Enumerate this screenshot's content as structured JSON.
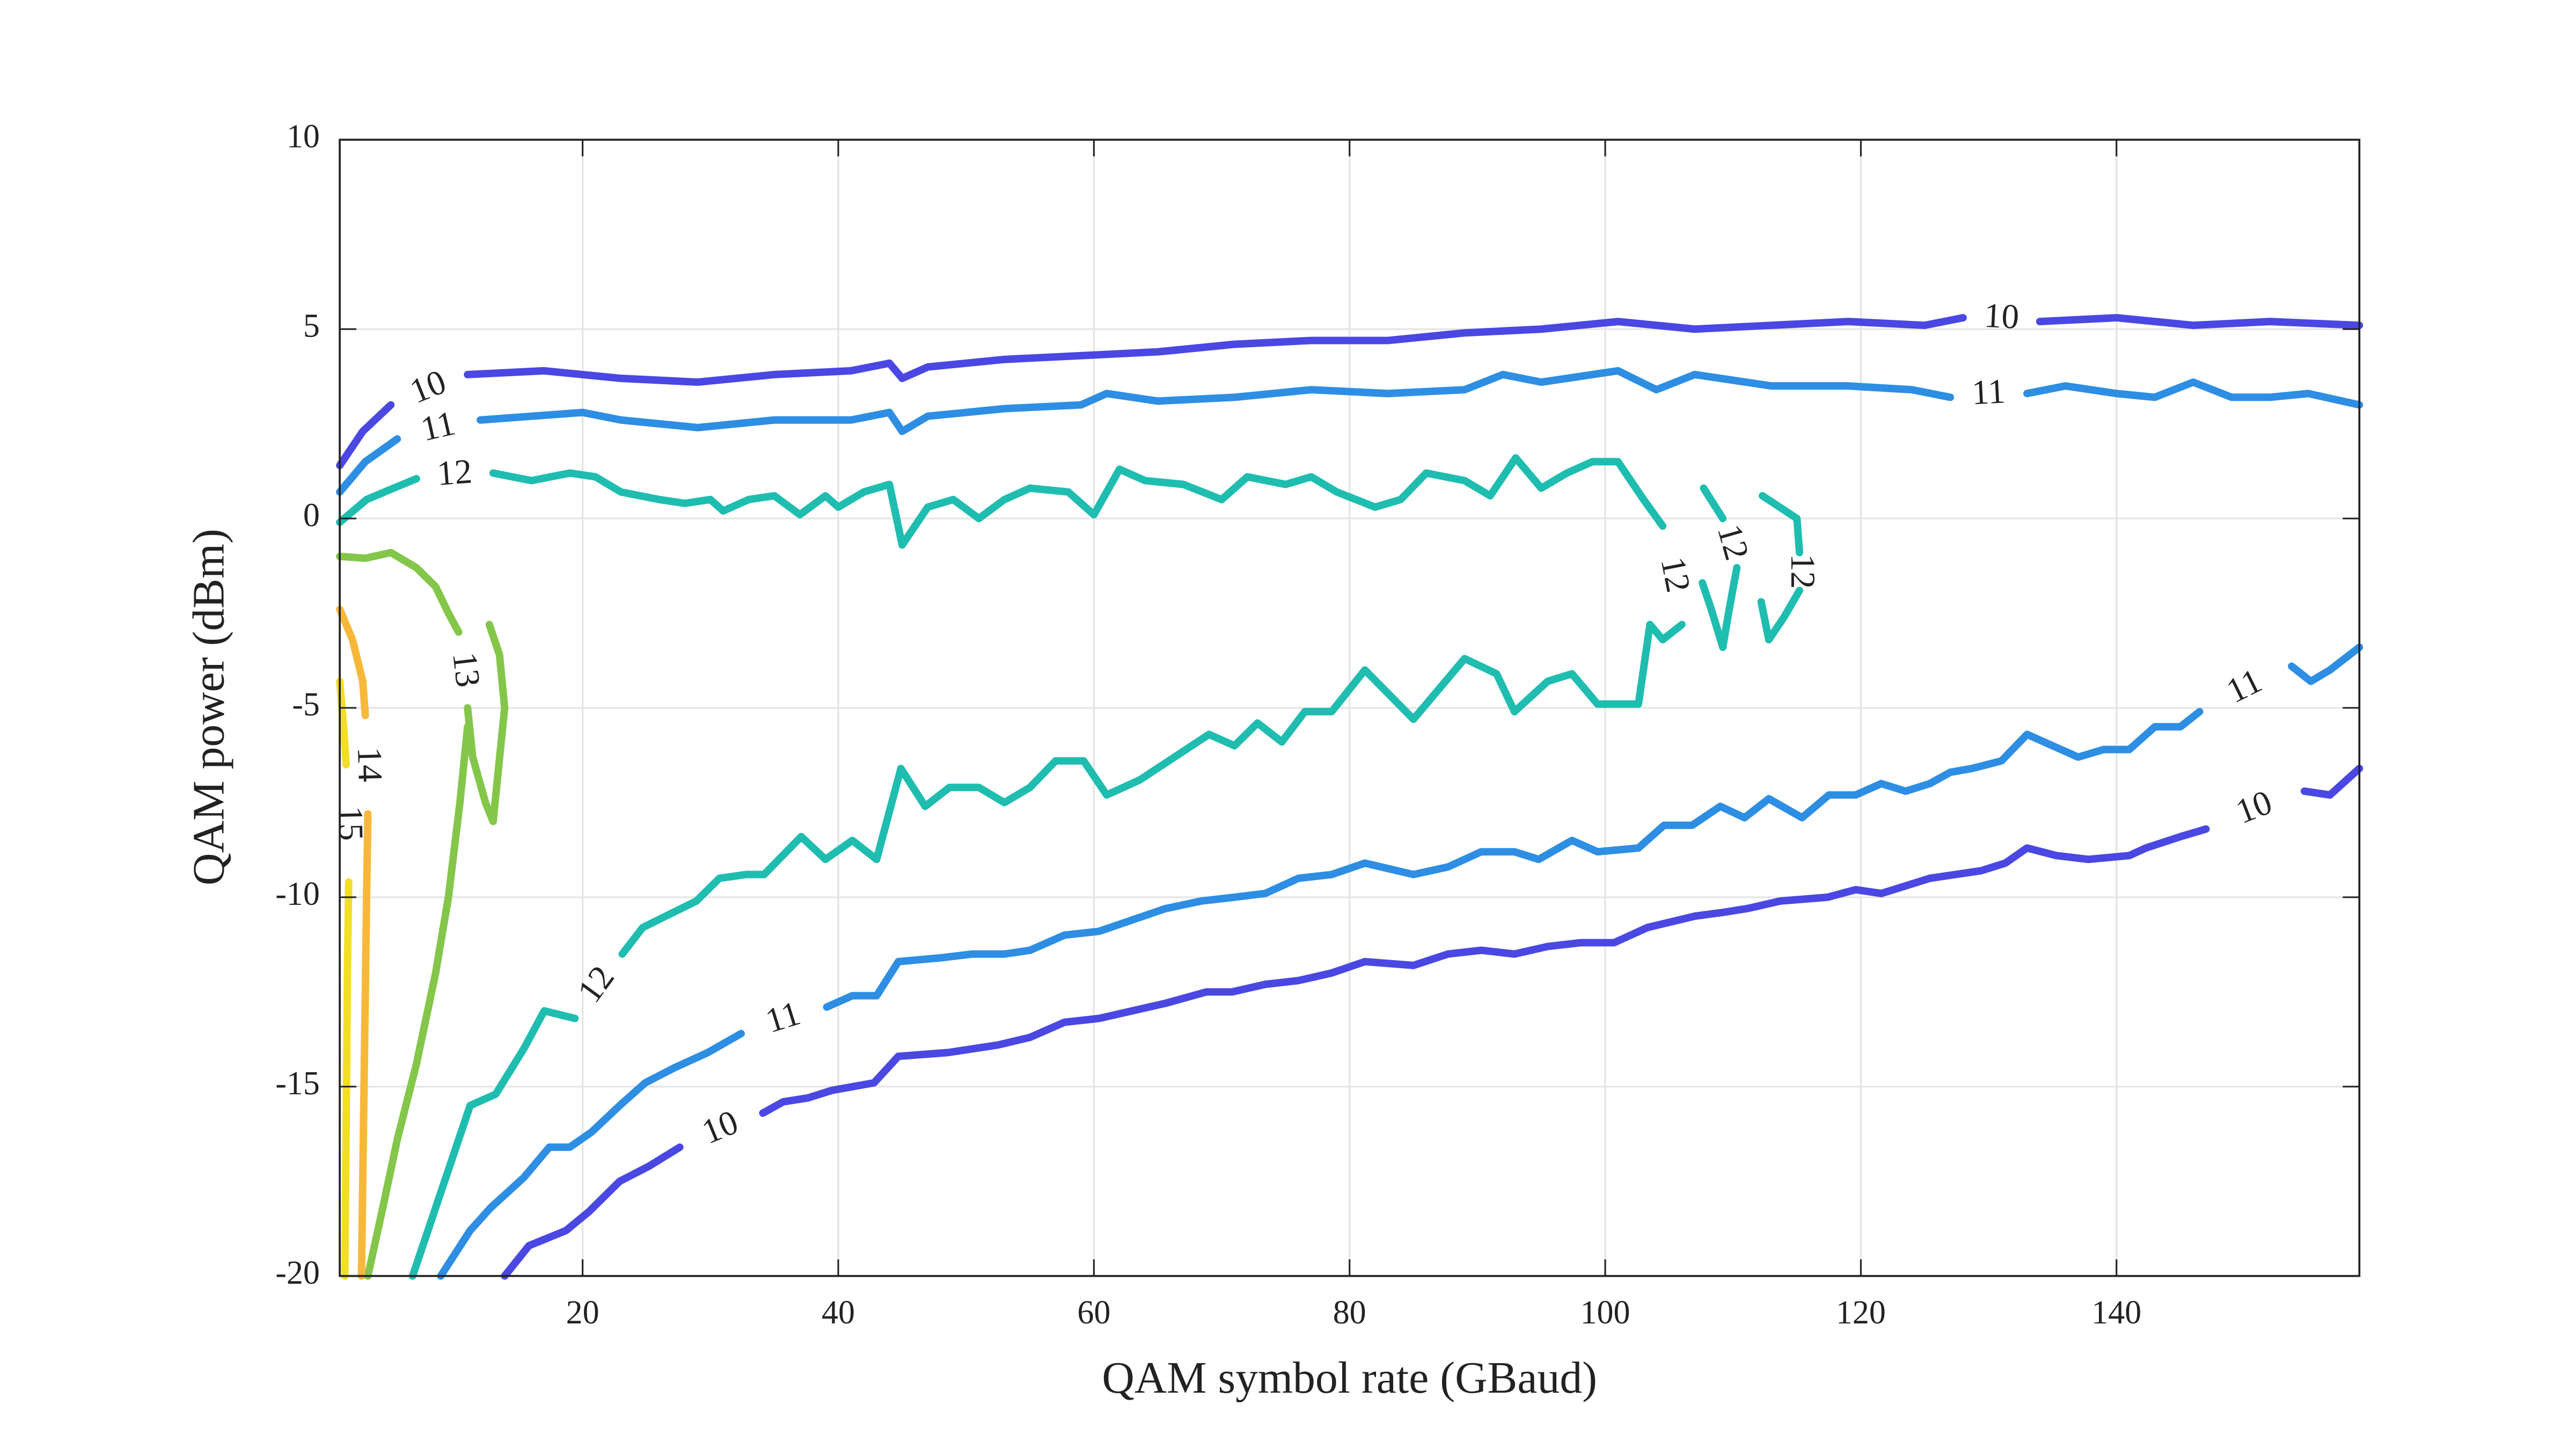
{
  "chart_data": {
    "type": "contour",
    "xlabel": "QAM symbol rate (GBaud)",
    "ylabel": "QAM power (dBm)",
    "xlim": [
      1,
      159
    ],
    "ylim": [
      -20,
      10
    ],
    "xticks": [
      20,
      40,
      60,
      80,
      100,
      120,
      140
    ],
    "yticks": [
      -20,
      -15,
      -10,
      -5,
      0,
      5,
      10
    ],
    "grid": true,
    "contours": [
      {
        "level": 10,
        "color": "#4a47e3",
        "x": [
          1,
          2.8,
          5,
          null,
          11,
          17,
          23,
          29,
          35,
          41,
          44,
          45,
          47,
          53,
          59,
          65,
          71,
          77,
          83,
          89,
          95,
          101,
          107,
          113,
          119,
          125,
          128,
          null,
          134,
          140,
          146,
          152,
          159
        ],
        "y": [
          1.4,
          2.3,
          3.0,
          null,
          3.8,
          3.9,
          3.7,
          3.6,
          3.8,
          3.9,
          4.1,
          3.7,
          4.0,
          4.2,
          4.3,
          4.4,
          4.6,
          4.7,
          4.7,
          4.9,
          5.0,
          5.2,
          5.0,
          5.1,
          5.2,
          5.1,
          5.3,
          null,
          5.2,
          5.3,
          5.1,
          5.2,
          5.1
        ]
      },
      {
        "level": 11,
        "color": "#2d8ee3",
        "x": [
          1,
          3,
          5.5,
          null,
          12,
          16,
          20,
          23,
          29,
          35,
          41,
          44,
          45,
          47,
          53,
          59,
          61,
          65,
          71,
          77,
          83,
          89,
          92,
          95,
          101,
          104,
          107,
          113,
          119,
          124,
          127,
          null,
          133,
          136,
          140,
          143,
          146,
          149,
          152,
          155,
          159
        ],
        "y": [
          0.7,
          1.5,
          2.1,
          null,
          2.6,
          2.7,
          2.8,
          2.6,
          2.4,
          2.6,
          2.6,
          2.8,
          2.3,
          2.7,
          2.9,
          3.0,
          3.3,
          3.1,
          3.2,
          3.4,
          3.3,
          3.4,
          3.8,
          3.6,
          3.9,
          3.4,
          3.8,
          3.5,
          3.5,
          3.4,
          3.2,
          null,
          3.3,
          3.5,
          3.3,
          3.2,
          3.6,
          3.2,
          3.2,
          3.3,
          3.0
        ]
      },
      {
        "level": 12,
        "color": "#1fbdb0",
        "x": [
          1,
          3.1,
          5.2,
          7,
          null,
          13,
          16,
          19,
          21,
          23,
          26,
          28,
          30,
          31,
          33,
          35,
          37,
          39,
          40,
          42,
          44,
          45,
          47,
          49,
          51,
          53,
          55,
          58,
          60,
          62,
          64,
          67,
          70,
          72,
          75,
          77,
          79,
          82,
          84,
          86,
          89,
          91,
          93,
          95,
          97,
          99,
          101,
          103,
          104.5,
          null,
          106,
          104.5,
          103.5,
          102.6,
          99.4,
          97.4,
          95.5,
          92.9,
          91.5,
          89,
          85,
          81.2,
          78.6,
          76.5,
          74.7,
          72.8,
          71,
          69,
          63.6,
          61,
          59.2,
          57,
          55,
          53,
          51,
          48.7,
          46.8,
          44.9,
          43,
          41.1,
          39,
          37.1,
          34.2,
          32.8,
          30.7,
          28.9,
          26.5,
          24.7,
          23.1,
          null,
          19.4,
          17,
          15.4,
          13.2,
          11.2,
          9.6,
          6.7
        ],
        "y": [
          -0.1,
          0.5,
          0.8,
          1.05,
          null,
          1.2,
          1.0,
          1.2,
          1.1,
          0.7,
          0.5,
          0.4,
          0.5,
          0.2,
          0.5,
          0.6,
          0.1,
          0.6,
          0.3,
          0.7,
          0.9,
          -0.7,
          0.3,
          0.5,
          0.0,
          0.5,
          0.8,
          0.7,
          0.1,
          1.3,
          1.0,
          0.9,
          0.5,
          1.1,
          0.9,
          1.1,
          0.7,
          0.3,
          0.5,
          1.2,
          1.0,
          0.6,
          1.6,
          0.8,
          1.2,
          1.5,
          1.5,
          0.5,
          -0.2,
          null,
          -2.8,
          -3.2,
          -2.8,
          -4.9,
          -4.9,
          -4.1,
          -4.3,
          -5.1,
          -4.1,
          -3.7,
          -5.3,
          -4.0,
          -5.1,
          -5.1,
          -5.9,
          -5.4,
          -6.0,
          -5.7,
          -6.9,
          -7.3,
          -6.4,
          -6.4,
          -7.1,
          -7.5,
          -7.1,
          -7.1,
          -7.6,
          -6.6,
          -9.0,
          -8.5,
          -9.0,
          -8.4,
          -9.4,
          -9.4,
          -9.5,
          -10.1,
          -10.5,
          -10.8,
          -11.5,
          null,
          -13.2,
          -13.0,
          -14.0,
          -15.2,
          -15.5,
          -17.1,
          -20
        ]
      },
      {
        "level": 12,
        "color": "#1fbdb0",
        "x": [
          107.7,
          109.2,
          null,
          110.3,
          109.7,
          109.2,
          108.3,
          107.6
        ],
        "y": [
          0.8,
          0.0,
          null,
          -1.3,
          -2.4,
          -3.4,
          -2.4,
          -1.7
        ]
      },
      {
        "level": 12,
        "color": "#1fbdb0",
        "x": [
          112.3,
          115,
          115.2,
          null,
          115.2,
          114,
          112.8,
          112.2
        ],
        "y": [
          0.6,
          0.0,
          -0.9,
          null,
          -1.9,
          -2.6,
          -3.2,
          -2.2
        ]
      },
      {
        "level": 13,
        "color": "#84c64a",
        "x": [
          1,
          3,
          5,
          7,
          8.5,
          9.5,
          10.3,
          null,
          11,
          11.4,
          12.4,
          13,
          13.6,
          13.9,
          13.5,
          12.7
        ],
        "y": [
          -1,
          -1.05,
          -0.9,
          -1.3,
          -1.8,
          -2.5,
          -3.0,
          null,
          -5.0,
          -6.3,
          -7.5,
          -8.0,
          -6.0,
          -5.0,
          -3.6,
          -2.8
        ]
      },
      {
        "level": 13,
        "color": "#84c64a",
        "x": [
          11,
          10.4,
          9.5,
          8.5,
          7,
          5.5,
          4.3,
          3.2
        ],
        "y": [
          -5.5,
          -7.5,
          -10,
          -12,
          -14.4,
          -16.4,
          -18.3,
          -20
        ]
      },
      {
        "level": 14,
        "color": "#f7b83a",
        "x": [
          1,
          2,
          2.8,
          3,
          null,
          3.2,
          3.1,
          2.9,
          2.7
        ],
        "y": [
          -2.4,
          -3.2,
          -4.3,
          -5.2,
          null,
          -7.8,
          -10,
          -15,
          -20
        ]
      },
      {
        "level": 15,
        "color": "#f2df25",
        "x": [
          1,
          1.3,
          1.5,
          null,
          1.7,
          1.6,
          1.5,
          1.4
        ],
        "y": [
          -4.3,
          -5.5,
          -6.5,
          null,
          -9.6,
          -12,
          -16,
          -20
        ]
      },
      {
        "level": 11,
        "color": "#2d8ee3",
        "x": [
          8.9,
          11.2,
          12.8,
          15.4,
          17.4,
          19,
          20.7,
          22.9,
          24.9,
          27.2,
          29.8,
          32.4,
          null,
          39.1,
          41.1,
          43,
          44.7,
          48,
          50.5,
          53,
          55,
          57.7,
          60.4,
          63,
          65.6,
          68.4,
          71,
          73.4,
          76,
          78.6,
          81.2,
          85,
          87.7,
          90.3,
          92.9,
          94.8,
          97.4,
          99.4,
          102.6,
          104.6,
          106.8,
          109,
          110.9,
          112.8,
          115.4,
          117.5,
          119.6,
          121.6,
          123.5,
          125.4,
          127,
          128.7,
          131,
          133,
          135,
          137,
          139,
          141,
          143,
          145,
          146.5,
          null,
          153.7,
          155.2,
          156.7,
          159
        ],
        "y": [
          -20,
          -18.8,
          -18.2,
          -17.4,
          -16.6,
          -16.6,
          -16.2,
          -15.5,
          -14.9,
          -14.5,
          -14.1,
          -13.6,
          null,
          -12.9,
          -12.6,
          -12.6,
          -11.7,
          -11.6,
          -11.5,
          -11.5,
          -11.4,
          -11.0,
          -10.9,
          -10.6,
          -10.3,
          -10.1,
          -10.0,
          -9.9,
          -9.5,
          -9.4,
          -9.1,
          -9.4,
          -9.2,
          -8.8,
          -8.8,
          -9.0,
          -8.5,
          -8.8,
          -8.7,
          -8.1,
          -8.1,
          -7.6,
          -7.9,
          -7.4,
          -7.9,
          -7.3,
          -7.3,
          -7.0,
          -7.2,
          -7.0,
          -6.7,
          -6.6,
          -6.4,
          -5.7,
          -6.0,
          -6.3,
          -6.1,
          -6.1,
          -5.5,
          -5.5,
          -5.1,
          null,
          -3.9,
          -4.3,
          -4.0,
          -3.4
        ]
      },
      {
        "level": 10,
        "color": "#4a47e3",
        "x": [
          13.9,
          15.8,
          18.7,
          20.5,
          22.9,
          25.2,
          27.6,
          null,
          34.1,
          35.7,
          37.6,
          39.5,
          42.8,
          44.7,
          48.6,
          52.5,
          55,
          57.7,
          60.4,
          63,
          65.6,
          68.8,
          70.8,
          73.4,
          76,
          78.6,
          81.2,
          85,
          87.7,
          90.3,
          92.9,
          95.5,
          98.1,
          100.7,
          103.3,
          107,
          109.2,
          111.1,
          113.7,
          117.4,
          119.6,
          121.6,
          123.5,
          125.4,
          127.4,
          129.4,
          131.3,
          133,
          135.3,
          137.8,
          141,
          142.3,
          145,
          147,
          null,
          154.7,
          156.7,
          159
        ],
        "y": [
          -20,
          -19.2,
          -18.8,
          -18.3,
          -17.5,
          -17.1,
          -16.6,
          null,
          -15.7,
          -15.4,
          -15.3,
          -15.1,
          -14.9,
          -14.2,
          -14.1,
          -13.9,
          -13.7,
          -13.3,
          -13.2,
          -13.0,
          -12.8,
          -12.5,
          -12.5,
          -12.3,
          -12.2,
          -12.0,
          -11.7,
          -11.8,
          -11.5,
          -11.4,
          -11.5,
          -11.3,
          -11.2,
          -11.2,
          -10.8,
          -10.5,
          -10.4,
          -10.3,
          -10.1,
          -10.0,
          -9.8,
          -9.9,
          -9.7,
          -9.5,
          -9.4,
          -9.3,
          -9.1,
          -8.7,
          -8.9,
          -9.0,
          -8.9,
          -8.7,
          -8.4,
          -8.2,
          null,
          -7.2,
          -7.3,
          -6.6
        ]
      }
    ]
  }
}
